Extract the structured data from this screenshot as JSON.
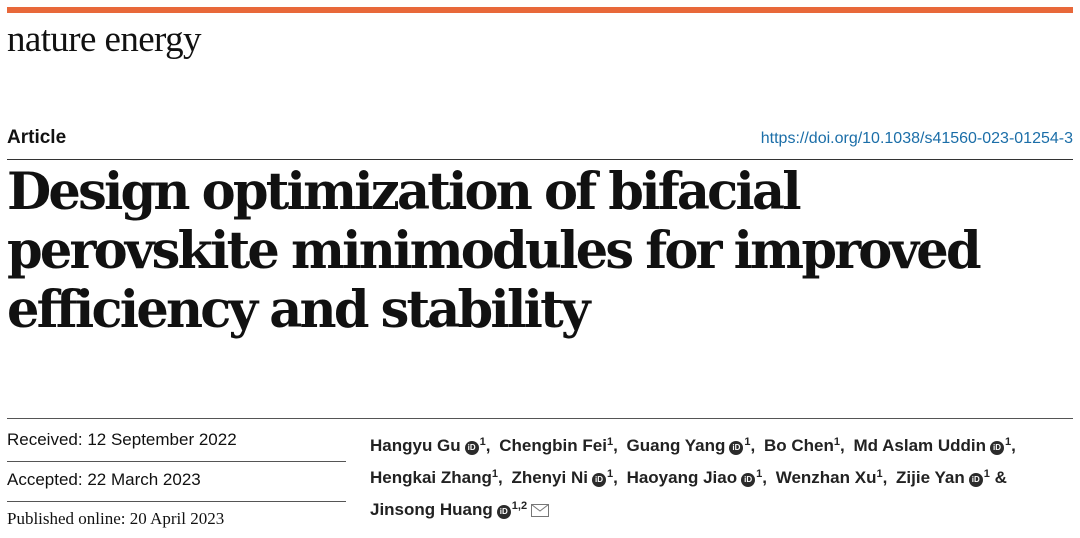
{
  "journal": {
    "name": "nature energy",
    "accent_color": "#e8683a"
  },
  "article": {
    "type": "Article",
    "doi": "https://doi.org/10.1038/s41560-023-01254-3",
    "title": "Design optimization of bifacial perovskite minimodules for improved efficiency and stability"
  },
  "dates": {
    "received": "Received: 12 September 2022",
    "accepted": "Accepted: 22 March 2023",
    "published": "Published online: 20 April 2023"
  },
  "authors": [
    {
      "name": "Hangyu Gu",
      "aff": "1",
      "orcid": true,
      "sep": ",",
      "icon": "orcid-icon"
    },
    {
      "name": "Chengbin Fei",
      "aff": "1",
      "orcid": false,
      "sep": ","
    },
    {
      "name": "Guang Yang",
      "aff": "1",
      "orcid": true,
      "sep": ","
    },
    {
      "name": "Bo Chen",
      "aff": "1",
      "orcid": false,
      "sep": ","
    },
    {
      "name": "Md Aslam Uddin",
      "aff": "1",
      "orcid": true,
      "sep": ","
    },
    {
      "name": "Hengkai Zhang",
      "aff": "1",
      "orcid": false,
      "sep": ","
    },
    {
      "name": "Zhenyi Ni",
      "aff": "1",
      "orcid": true,
      "sep": ","
    },
    {
      "name": "Haoyang Jiao",
      "aff": "1",
      "orcid": true,
      "sep": ","
    },
    {
      "name": "Wenzhan Xu",
      "aff": "1",
      "orcid": false,
      "sep": ","
    },
    {
      "name": "Zijie Yan",
      "aff": "1",
      "orcid": true,
      "sep": " &"
    },
    {
      "name": "Jinsong Huang",
      "aff": "1,2",
      "orcid": true,
      "sep": "",
      "corresponding": true
    }
  ],
  "icons": {
    "orcid": "orcid-icon",
    "mail": "mail-icon"
  },
  "orcid_glyph": "iD"
}
